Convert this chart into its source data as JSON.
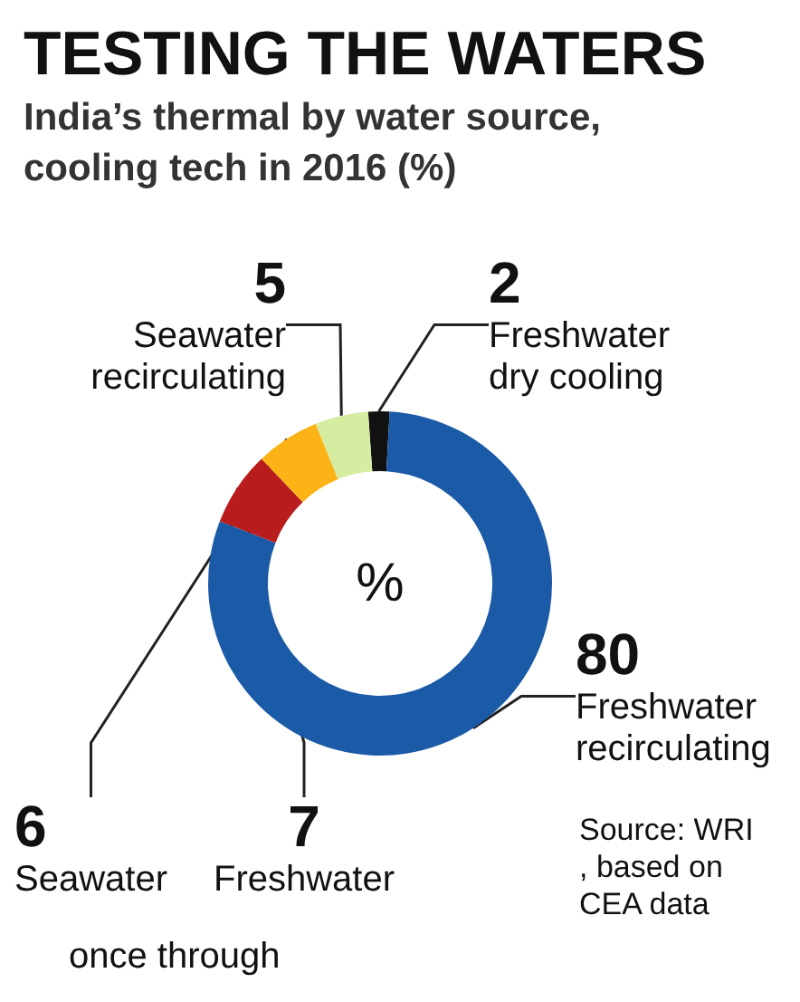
{
  "chart_data": {
    "type": "donut",
    "title": "TESTING THE WATERS",
    "subtitle": "India’s thermal by water source, cooling tech in 2016 (%)",
    "categories": [
      "Freshwater dry cooling",
      "Freshwater recirculating",
      "Freshwater",
      "Seawater",
      "Seawater recirculating"
    ],
    "values": [
      2,
      80,
      7,
      6,
      5
    ],
    "colors": [
      "#111111",
      "#1b5aa6",
      "#b81c1c",
      "#fbb316",
      "#d6eca0"
    ],
    "data_labels": true,
    "legend": false,
    "annotations": [
      "%",
      "once through",
      "Source: WRI, based on CEA data"
    ]
  }
}
